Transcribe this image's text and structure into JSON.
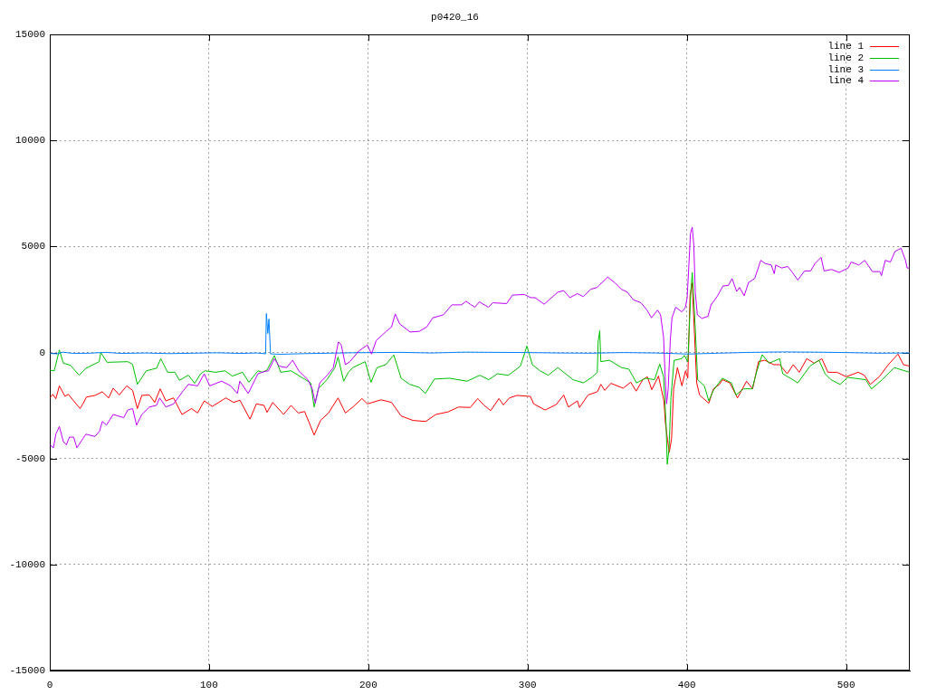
{
  "chart_data": {
    "type": "line",
    "title": "p0420_16",
    "xlim": [
      0,
      540
    ],
    "ylim": [
      -15000,
      15000
    ],
    "xticks": [
      0,
      100,
      200,
      300,
      400,
      500
    ],
    "yticks": [
      -15000,
      -10000,
      -5000,
      0,
      5000,
      10000,
      15000
    ],
    "grid": true,
    "legend": "top right",
    "series": [
      {
        "name": "line 1",
        "color": "#ff0000",
        "x": [
          0,
          1.9,
          3.8,
          6,
          9.5,
          11.7,
          15,
          19,
          20.8,
          23,
          28.4,
          33,
          37,
          39.8,
          43.6,
          48.3,
          52,
          55,
          57.8,
          62.5,
          65.9,
          69.3,
          72.9,
          77.7,
          83,
          89,
          92.8,
          97,
          102,
          110.6,
          115.3,
          119.4,
          125.7,
          129.7,
          134.5,
          136.4,
          140,
          146.8,
          151.5,
          156,
          160,
          166,
          170,
          175,
          181,
          185.6,
          190.3,
          196,
          199.4,
          208,
          214.6,
          220.6,
          228,
          236,
          242.4,
          250,
          256.6,
          264,
          268.7,
          272.5,
          276.8,
          282,
          284.8,
          288.6,
          293.4,
          301.8,
          303.8,
          311,
          318,
          322.7,
          325.6,
          331.3,
          332.6,
          338,
          343.8,
          346,
          348.5,
          352.3,
          360,
          364.8,
          368.2,
          372.3,
          375.2,
          378,
          382.2,
          385.6,
          386.6,
          387.9,
          389,
          390.4,
          391.7,
          394.1,
          396.9,
          399.2,
          400.6,
          402,
          403.4,
          404.9,
          406.2,
          408,
          410,
          413.8,
          416.7,
          420.5,
          422.3,
          427,
          431.8,
          437.5,
          441.3,
          445,
          448.9,
          454.5,
          458.3,
          463,
          466.8,
          470.6,
          475.3,
          480,
          484.8,
          488.6,
          494.3,
          500,
          507.6,
          511.4,
          515.2,
          520.8,
          526.5,
          532.6,
          536,
          539.8
        ],
        "values": [
          -2140,
          -1970,
          -2180,
          -1570,
          -2060,
          -1970,
          -2280,
          -2640,
          -2420,
          -2100,
          -2020,
          -1850,
          -2140,
          -1680,
          -2000,
          -1570,
          -1780,
          -2640,
          -2020,
          -2000,
          -2350,
          -1710,
          -2280,
          -2140,
          -2920,
          -2640,
          -2850,
          -2280,
          -2540,
          -2140,
          -2350,
          -2250,
          -3140,
          -2420,
          -2490,
          -2820,
          -2350,
          -2920,
          -2490,
          -2850,
          -2780,
          -3890,
          -3200,
          -2850,
          -2140,
          -2850,
          -2570,
          -2170,
          -2420,
          -2230,
          -2350,
          -2990,
          -3200,
          -3250,
          -2920,
          -2800,
          -2570,
          -2590,
          -2170,
          -2470,
          -2740,
          -2170,
          -2470,
          -2140,
          -2020,
          -2070,
          -2420,
          -2710,
          -2450,
          -2000,
          -2570,
          -2280,
          -2590,
          -2000,
          -1850,
          -1500,
          -1780,
          -1450,
          -1680,
          -1400,
          -1820,
          -1280,
          -1140,
          -1750,
          -1110,
          -2280,
          -3350,
          -4130,
          -4700,
          -4060,
          -1710,
          -710,
          -1570,
          -860,
          -1210,
          2700,
          3280,
          710,
          -1430,
          -2000,
          -2140,
          -2390,
          -1710,
          -1500,
          -1280,
          -1430,
          -2140,
          -1350,
          -1710,
          -430,
          -360,
          -570,
          -570,
          -1000,
          -570,
          -930,
          -290,
          -500,
          -290,
          -930,
          -930,
          -1140,
          -930,
          -1070,
          -1500,
          -1140,
          -570,
          -70,
          -570,
          -640
        ]
      },
      {
        "name": "line 2",
        "color": "#00c000",
        "x": [
          0,
          2.8,
          6,
          8.5,
          13,
          18.4,
          22.7,
          31,
          32,
          36,
          49,
          52,
          55,
          60.6,
          67,
          69.7,
          74,
          78.6,
          81.4,
          87,
          91,
          94.7,
          97.5,
          104,
          110,
          114.6,
          121,
          125,
          130.7,
          133.5,
          136.4,
          141,
          145,
          151.5,
          159,
          163.8,
          166,
          168.6,
          174,
          179,
          181,
          184.5,
          187.5,
          190.3,
          198,
          201.7,
          205.5,
          211,
          216,
          220.6,
          226,
          232,
          235.8,
          241.5,
          251,
          262,
          270,
          275.6,
          281,
          288,
          295.5,
          299.6,
          303,
          307.8,
          313,
          319,
          328.6,
          335,
          340.9,
          343.8,
          344.3,
          345.3,
          346,
          351.3,
          359,
          363.6,
          368.4,
          374,
          379.7,
          383,
          385.4,
          387,
          387.7,
          388.8,
          390,
          392,
          396.8,
          398.5,
          400.6,
          402.5,
          403.4,
          404.4,
          405.3,
          406.8,
          411,
          413.8,
          416.7,
          422.3,
          428,
          430.9,
          435.6,
          441,
          444,
          447.3,
          451.7,
          458.3,
          460.2,
          465,
          469.7,
          477.3,
          483,
          486.8,
          490.5,
          496.2,
          501,
          512.3,
          516,
          522.7,
          530.3,
          539.8
        ],
        "values": [
          -830,
          -860,
          120,
          -500,
          -600,
          -1070,
          -740,
          -430,
          0,
          -460,
          -430,
          -560,
          -1500,
          -860,
          -740,
          -290,
          -930,
          -930,
          -1310,
          -1070,
          -1450,
          -1000,
          -860,
          -930,
          -860,
          -1110,
          -930,
          -1400,
          -860,
          -930,
          -830,
          -140,
          -930,
          -860,
          -1210,
          -1430,
          -2570,
          -1710,
          -1280,
          -710,
          -210,
          -1350,
          -930,
          -710,
          -430,
          -1400,
          -710,
          -570,
          -110,
          -1210,
          -1500,
          -1640,
          -1930,
          -1250,
          -1210,
          -1350,
          -1070,
          -1280,
          -1000,
          -1070,
          -640,
          310,
          -570,
          -860,
          -1070,
          -710,
          -1280,
          -1430,
          -1140,
          -930,
          500,
          1030,
          -430,
          -360,
          -710,
          -780,
          -1430,
          -1210,
          -1280,
          -540,
          -1140,
          -3420,
          -5270,
          -4560,
          -2140,
          -360,
          -290,
          -140,
          -430,
          2850,
          3780,
          2420,
          1140,
          -1280,
          -1570,
          -2280,
          -1780,
          -1210,
          -1430,
          -2000,
          -1710,
          -1710,
          -860,
          -100,
          -500,
          -290,
          -1000,
          -1210,
          -1430,
          -640,
          -360,
          -1000,
          -1280,
          -1500,
          -1170,
          -1280,
          -1710,
          -1280,
          -710,
          -930
        ]
      },
      {
        "name": "line 3",
        "color": "#0080ff",
        "x": [
          0,
          5,
          8,
          15,
          25,
          35,
          45,
          60,
          75,
          90,
          105,
          120,
          130,
          135.5,
          136,
          136.9,
          137.6,
          138.6,
          145,
          160,
          175,
          190,
          205,
          220,
          240,
          260,
          280,
          300,
          320,
          340,
          360,
          380,
          390,
          400,
          410,
          420,
          440,
          460,
          480,
          500,
          520,
          540
        ],
        "values": [
          -40,
          -60,
          20,
          -40,
          -30,
          10,
          -40,
          -20,
          -50,
          -30,
          -10,
          -40,
          -20,
          -60,
          1840,
          900,
          1580,
          -60,
          -80,
          -50,
          -30,
          -10,
          0,
          10,
          -20,
          20,
          10,
          0,
          -20,
          -30,
          0,
          -20,
          -40,
          -70,
          -50,
          -30,
          10,
          30,
          20,
          0,
          -30,
          -20
        ]
      },
      {
        "name": "line 4",
        "color": "#c000ff",
        "x": [
          0,
          2.3,
          3.8,
          6,
          8.5,
          10.4,
          12.3,
          15,
          17,
          20.8,
          22.7,
          28.4,
          31.3,
          33,
          35.6,
          39.8,
          46.4,
          49,
          52,
          54.5,
          57.8,
          62.5,
          67,
          69,
          72.9,
          77.7,
          83.3,
          87,
          92.8,
          97,
          100.4,
          107.9,
          113.6,
          117.8,
          119.3,
          124.6,
          130.7,
          134.5,
          137.3,
          141,
          144,
          148.7,
          152.5,
          156.3,
          162,
          164.8,
          166.7,
          169.5,
          174.2,
          178,
          181.2,
          183,
          185.6,
          188.4,
          194,
          199.4,
          202,
          205,
          211.2,
          214.6,
          216.9,
          219.7,
          226.3,
          232,
          236.7,
          240.5,
          247.2,
          252.5,
          258.5,
          261.4,
          264,
          266.9,
          269.7,
          275.4,
          278.2,
          286.8,
          290.5,
          298.1,
          301.9,
          304.7,
          310.4,
          319,
          322.7,
          326.5,
          331.3,
          335,
          339.8,
          343.6,
          350.3,
          355,
          358.8,
          362.6,
          366.4,
          371.2,
          375,
          377.8,
          381.6,
          383.5,
          385.4,
          386.4,
          387.3,
          388.3,
          389.6,
          390.7,
          393,
          396.8,
          399,
          400.2,
          402.3,
          403.4,
          404.4,
          405.3,
          406.6,
          409.5,
          413.3,
          415.2,
          419,
          422.7,
          426.1,
          428.4,
          431.3,
          433.1,
          436,
          438.8,
          442.6,
          446.4,
          449.2,
          453,
          454.9,
          455.8,
          459.6,
          463.4,
          466.3,
          469.7,
          473.9,
          477.7,
          480.5,
          484.3,
          486.2,
          490.9,
          495.6,
          501.3,
          503.2,
          508,
          511.7,
          516.5,
          521.2,
          522.2,
          524.6,
          527.8,
          530.7,
          534.5,
          537.3,
          538.3,
          539.8
        ],
        "values": [
          -4350,
          -4490,
          -3850,
          -3490,
          -4200,
          -4350,
          -3990,
          -3990,
          -4490,
          -4060,
          -3850,
          -3960,
          -3700,
          -3250,
          -3420,
          -2920,
          -3070,
          -2710,
          -2640,
          -3420,
          -2920,
          -2570,
          -2490,
          -2140,
          -2570,
          -2420,
          -1850,
          -1500,
          -1570,
          -1000,
          -1570,
          -1350,
          -1570,
          -1930,
          -1350,
          -1930,
          -1000,
          -900,
          -860,
          -290,
          -640,
          -710,
          -360,
          -860,
          -1280,
          -1710,
          -2390,
          -1430,
          -1070,
          -710,
          500,
          360,
          -570,
          -430,
          70,
          360,
          -70,
          570,
          1000,
          1210,
          1820,
          1350,
          970,
          1000,
          1210,
          1640,
          1780,
          2250,
          2250,
          2420,
          2280,
          2140,
          2390,
          2140,
          2350,
          2310,
          2710,
          2740,
          2590,
          2590,
          2280,
          2850,
          2920,
          2590,
          2780,
          2640,
          2990,
          3070,
          3560,
          3280,
          2990,
          2850,
          2490,
          2350,
          2000,
          1640,
          2000,
          1780,
          710,
          -1140,
          -2420,
          -1710,
          570,
          1640,
          2140,
          1920,
          2110,
          2570,
          5630,
          5910,
          5050,
          2850,
          1780,
          1610,
          1710,
          2250,
          2640,
          3140,
          3170,
          3490,
          2880,
          3070,
          2680,
          3310,
          3490,
          4350,
          4200,
          4130,
          3720,
          4130,
          3990,
          4060,
          3780,
          3420,
          3850,
          3850,
          4200,
          4490,
          3850,
          3920,
          3780,
          3990,
          4270,
          4130,
          4350,
          3820,
          3820,
          3630,
          4350,
          4270,
          4770,
          4920,
          4350,
          3990,
          3990
        ]
      }
    ]
  }
}
